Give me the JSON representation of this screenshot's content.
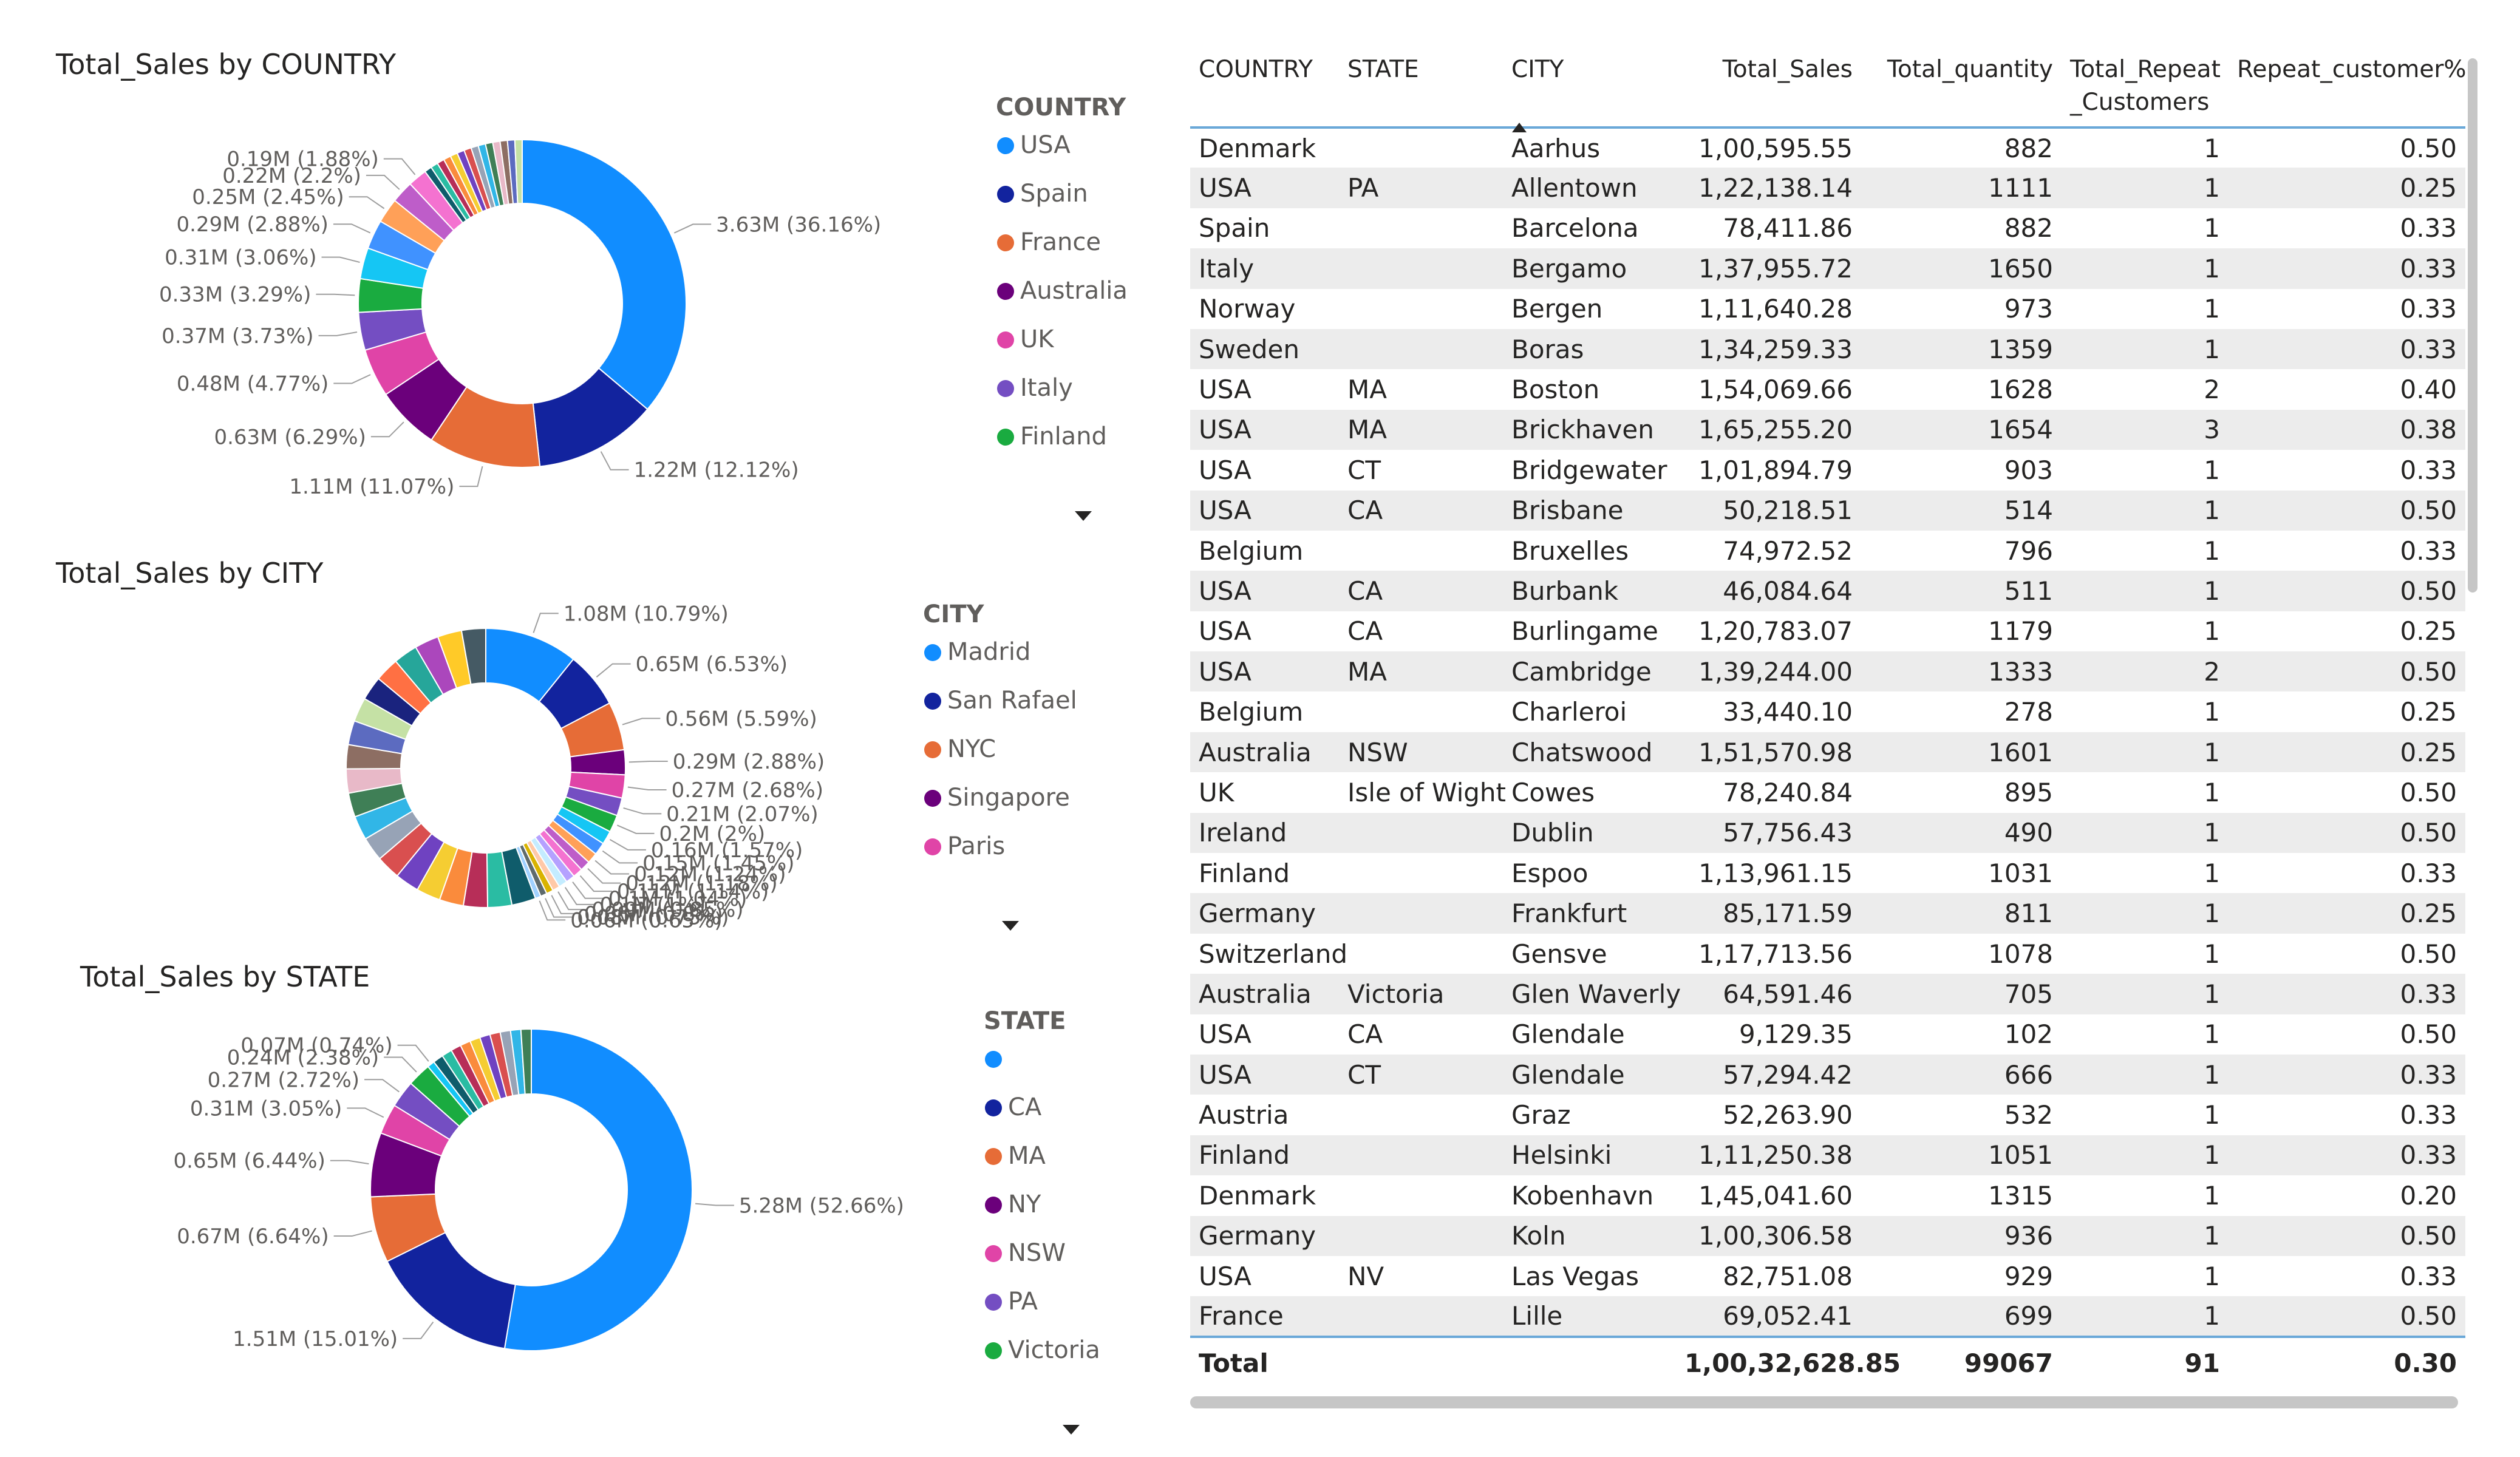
{
  "charts": [
    {
      "type": "pie",
      "title": "Total_Sales by COUNTRY",
      "legend_title": "COUNTRY",
      "legend": [
        "USA",
        "Spain",
        "France",
        "Australia",
        "UK",
        "Italy",
        "Finland"
      ],
      "slices": [
        {
          "name": "USA",
          "value": 36.16,
          "color": "#118DFF",
          "label": "3.63M (36.16%)"
        },
        {
          "name": "Spain",
          "value": 12.12,
          "color": "#12239E",
          "label": "1.22M (12.12%)"
        },
        {
          "name": "France",
          "value": 11.07,
          "color": "#E66C37",
          "label": "1.11M (11.07%)"
        },
        {
          "name": "Australia",
          "value": 6.29,
          "color": "#6B007B",
          "label": "0.63M (6.29%)"
        },
        {
          "name": "UK",
          "value": 4.77,
          "color": "#E044A7",
          "label": "0.48M (4.77%)"
        },
        {
          "name": "Italy",
          "value": 3.73,
          "color": "#744EC2",
          "label": "0.37M (3.73%)"
        },
        {
          "name": "Finland",
          "value": 3.29,
          "color": "#1AAB40",
          "label": "0.33M (3.29%)"
        },
        {
          "name": "",
          "value": 3.06,
          "color": "#15C6F4",
          "label": "0.31M (3.06%)"
        },
        {
          "name": "",
          "value": 2.88,
          "color": "#4092FF",
          "label": "0.29M (2.88%)"
        },
        {
          "name": "",
          "value": 2.45,
          "color": "#FFA058",
          "label": "0.25M (2.45%)"
        },
        {
          "name": "",
          "value": 2.2,
          "color": "#BE5DC9",
          "label": "0.22M (2.2%)"
        },
        {
          "name": "",
          "value": 1.88,
          "color": "#F472D0",
          "label": "0.19M (1.88%)"
        },
        {
          "name": "",
          "value": 10.1,
          "color": "#9E9E9E",
          "label": ""
        }
      ],
      "small_colors": [
        "#0F5C6B",
        "#2ABCA3",
        "#B72E58",
        "#FA8B3C",
        "#F5CD32",
        "#6F42C1",
        "#D94F4F",
        "#97A3B6",
        "#31B6E7",
        "#3F7F56",
        "#E8B9C8",
        "#8D6E63",
        "#5C6BC0",
        "#C5E1A5"
      ]
    },
    {
      "type": "pie",
      "title": "Total_Sales by CITY",
      "legend_title": "CITY",
      "legend": [
        "Madrid",
        "San Rafael",
        "NYC",
        "Singapore",
        "Paris"
      ],
      "slices": [
        {
          "name": "Madrid",
          "value": 10.79,
          "color": "#118DFF",
          "label": "1.08M (10.79%)"
        },
        {
          "name": "San Rafael",
          "value": 6.53,
          "color": "#12239E",
          "label": "0.65M (6.53%)"
        },
        {
          "name": "NYC",
          "value": 5.59,
          "color": "#E66C37",
          "label": "0.56M (5.59%)"
        },
        {
          "name": "Singapore",
          "value": 2.88,
          "color": "#6B007B",
          "label": "0.29M (2.88%)"
        },
        {
          "name": "Paris",
          "value": 2.68,
          "color": "#E044A7",
          "label": "0.27M (2.68%)"
        },
        {
          "name": "",
          "value": 2.07,
          "color": "#744EC2",
          "label": "0.21M (2.07%)"
        },
        {
          "name": "",
          "value": 2.0,
          "color": "#1AAB40",
          "label": "0.2M (2%)"
        },
        {
          "name": "",
          "value": 1.57,
          "color": "#15C6F4",
          "label": "0.16M (1.57%)"
        },
        {
          "name": "",
          "value": 1.45,
          "color": "#4092FF",
          "label": "0.15M (1.45%)"
        },
        {
          "name": "",
          "value": 1.24,
          "color": "#FFA058",
          "label": "0.12M (1.24%)"
        },
        {
          "name": "",
          "value": 1.18,
          "color": "#BE5DC9",
          "label": "0.12M (1.18%)"
        },
        {
          "name": "",
          "value": 1.14,
          "color": "#F472D0",
          "label": "0.11M (1.14%)"
        },
        {
          "name": "",
          "value": 1.04,
          "color": "#B5A1FF",
          "label": "0.1M (1.04%)"
        },
        {
          "name": "",
          "value": 1.0,
          "color": "#C4ECFF",
          "label": "0.1M (1%)"
        },
        {
          "name": "",
          "value": 0.85,
          "color": "#FFC9A8",
          "label": "0.09M (0.85%)"
        },
        {
          "name": "",
          "value": 0.8,
          "color": "#D9B300",
          "label": "0.08M (0.8%)"
        },
        {
          "name": "",
          "value": 0.75,
          "color": "#5F6B6D",
          "label": "0.08M (0.75%)"
        },
        {
          "name": "",
          "value": 0.65,
          "color": "#A0D1FF",
          "label": "0.06M (0.65%)"
        },
        {
          "name": "",
          "value": 55.79,
          "color": "#9E9E9E",
          "label": ""
        }
      ],
      "small_colors": [
        "#0F5C6B",
        "#2ABCA3",
        "#B72E58",
        "#FA8B3C",
        "#F5CD32",
        "#6F42C1",
        "#D94F4F",
        "#97A3B6",
        "#31B6E7",
        "#3F7F56",
        "#E8B9C8",
        "#8D6E63",
        "#5C6BC0",
        "#C5E1A5",
        "#1A237E",
        "#FF7043",
        "#26A69A",
        "#AB47BC",
        "#FFCA28",
        "#455A64"
      ]
    },
    {
      "type": "pie",
      "title": "Total_Sales by STATE",
      "legend_title": "STATE",
      "legend": [
        "",
        "CA",
        "MA",
        "NY",
        "NSW",
        "PA",
        "Victoria"
      ],
      "slices": [
        {
          "name": "",
          "value": 52.66,
          "color": "#118DFF",
          "label": "5.28M (52.66%)"
        },
        {
          "name": "CA",
          "value": 15.01,
          "color": "#12239E",
          "label": "1.51M (15.01%)"
        },
        {
          "name": "MA",
          "value": 6.64,
          "color": "#E66C37",
          "label": "0.67M (6.64%)"
        },
        {
          "name": "NY",
          "value": 6.44,
          "color": "#6B007B",
          "label": "0.65M (6.44%)"
        },
        {
          "name": "NSW",
          "value": 3.05,
          "color": "#E044A7",
          "label": "0.31M (3.05%)"
        },
        {
          "name": "PA",
          "value": 2.72,
          "color": "#744EC2",
          "label": "0.27M (2.72%)"
        },
        {
          "name": "Victoria",
          "value": 2.38,
          "color": "#1AAB40",
          "label": "0.24M (2.38%)"
        },
        {
          "name": "",
          "value": 0.74,
          "color": "#15C6F4",
          "label": "0.07M (0.74%)"
        },
        {
          "name": "",
          "value": 10.36,
          "color": "#9E9E9E",
          "label": ""
        }
      ],
      "small_colors": [
        "#0F5C6B",
        "#2ABCA3",
        "#B72E58",
        "#FA8B3C",
        "#F5CD32",
        "#6F42C1",
        "#D94F4F",
        "#97A3B6",
        "#31B6E7",
        "#3F7F56"
      ]
    }
  ],
  "table": {
    "columns": [
      "COUNTRY",
      "STATE",
      "CITY",
      "Total_Sales",
      "Total_quantity",
      "Total_Repeat\n_Customers",
      "Repeat_customer%"
    ],
    "rows": [
      [
        "Denmark",
        "",
        "Aarhus",
        "1,00,595.55",
        "882",
        "1",
        "0.50"
      ],
      [
        "USA",
        "PA",
        "Allentown",
        "1,22,138.14",
        "1111",
        "1",
        "0.25"
      ],
      [
        "Spain",
        "",
        "Barcelona",
        "78,411.86",
        "882",
        "1",
        "0.33"
      ],
      [
        "Italy",
        "",
        "Bergamo",
        "1,37,955.72",
        "1650",
        "1",
        "0.33"
      ],
      [
        "Norway",
        "",
        "Bergen",
        "1,11,640.28",
        "973",
        "1",
        "0.33"
      ],
      [
        "Sweden",
        "",
        "Boras",
        "1,34,259.33",
        "1359",
        "1",
        "0.33"
      ],
      [
        "USA",
        "MA",
        "Boston",
        "1,54,069.66",
        "1628",
        "2",
        "0.40"
      ],
      [
        "USA",
        "MA",
        "Brickhaven",
        "1,65,255.20",
        "1654",
        "3",
        "0.38"
      ],
      [
        "USA",
        "CT",
        "Bridgewater",
        "1,01,894.79",
        "903",
        "1",
        "0.33"
      ],
      [
        "USA",
        "CA",
        "Brisbane",
        "50,218.51",
        "514",
        "1",
        "0.50"
      ],
      [
        "Belgium",
        "",
        "Bruxelles",
        "74,972.52",
        "796",
        "1",
        "0.33"
      ],
      [
        "USA",
        "CA",
        "Burbank",
        "46,084.64",
        "511",
        "1",
        "0.50"
      ],
      [
        "USA",
        "CA",
        "Burlingame",
        "1,20,783.07",
        "1179",
        "1",
        "0.25"
      ],
      [
        "USA",
        "MA",
        "Cambridge",
        "1,39,244.00",
        "1333",
        "2",
        "0.50"
      ],
      [
        "Belgium",
        "",
        "Charleroi",
        "33,440.10",
        "278",
        "1",
        "0.25"
      ],
      [
        "Australia",
        "NSW",
        "Chatswood",
        "1,51,570.98",
        "1601",
        "1",
        "0.25"
      ],
      [
        "UK",
        "Isle of Wight",
        "Cowes",
        "78,240.84",
        "895",
        "1",
        "0.50"
      ],
      [
        "Ireland",
        "",
        "Dublin",
        "57,756.43",
        "490",
        "1",
        "0.50"
      ],
      [
        "Finland",
        "",
        "Espoo",
        "1,13,961.15",
        "1031",
        "1",
        "0.33"
      ],
      [
        "Germany",
        "",
        "Frankfurt",
        "85,171.59",
        "811",
        "1",
        "0.25"
      ],
      [
        "Switzerland",
        "",
        "Gensve",
        "1,17,713.56",
        "1078",
        "1",
        "0.50"
      ],
      [
        "Australia",
        "Victoria",
        "Glen Waverly",
        "64,591.46",
        "705",
        "1",
        "0.33"
      ],
      [
        "USA",
        "CA",
        "Glendale",
        "9,129.35",
        "102",
        "1",
        "0.50"
      ],
      [
        "USA",
        "CT",
        "Glendale",
        "57,294.42",
        "666",
        "1",
        "0.33"
      ],
      [
        "Austria",
        "",
        "Graz",
        "52,263.90",
        "532",
        "1",
        "0.33"
      ],
      [
        "Finland",
        "",
        "Helsinki",
        "1,11,250.38",
        "1051",
        "1",
        "0.33"
      ],
      [
        "Denmark",
        "",
        "Kobenhavn",
        "1,45,041.60",
        "1315",
        "1",
        "0.20"
      ],
      [
        "Germany",
        "",
        "Koln",
        "1,00,306.58",
        "936",
        "1",
        "0.50"
      ],
      [
        "USA",
        "NV",
        "Las Vegas",
        "82,751.08",
        "929",
        "1",
        "0.33"
      ],
      [
        "France",
        "",
        "Lille",
        "69,052.41",
        "699",
        "1",
        "0.50"
      ]
    ],
    "total": [
      "Total",
      "",
      "",
      "1,00,32,628.85",
      "99067",
      "91",
      "0.30"
    ]
  }
}
